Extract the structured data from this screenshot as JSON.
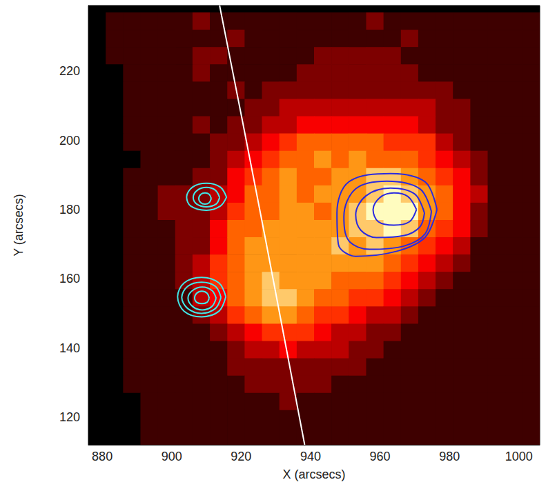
{
  "chart_data": {
    "type": "heatmap",
    "x_label": "X (arcsecs)",
    "y_label": "Y (arcsecs)",
    "xlim": [
      876,
      1006
    ],
    "ylim": [
      112,
      239
    ],
    "xticks": [
      880,
      900,
      920,
      940,
      960,
      980,
      1000
    ],
    "yticks": [
      120,
      140,
      160,
      180,
      200,
      220
    ],
    "grid": false,
    "cells": {
      "x": [
        878.5,
        883.5,
        888.5,
        893.5,
        898.5,
        903.5,
        908.5,
        913.5,
        918.5,
        923.5,
        928.5,
        933.5,
        938.5,
        943.5,
        948.5,
        953.5,
        958.5,
        963.5,
        968.5,
        973.5,
        978.5,
        983.5,
        988.5,
        993.5,
        998.5,
        1003.5
      ],
      "y": [
        234.5,
        229.5,
        224.5,
        219.5,
        214.5,
        209.5,
        204.5,
        199.5,
        194.5,
        189.5,
        184.5,
        179.5,
        174.5,
        169.5,
        164.5,
        159.5,
        154.5,
        149.5,
        144.5,
        139.5,
        134.5,
        129.5,
        124.5,
        119.5,
        114.5
      ],
      "zlim": [
        0,
        9
      ],
      "z": [
        [
          0,
          1,
          1,
          1,
          1,
          1,
          2,
          1,
          1,
          1,
          1,
          1,
          1,
          1,
          1,
          1,
          2,
          1,
          1,
          1,
          1,
          1,
          1,
          1,
          1,
          1
        ],
        [
          0,
          1,
          1,
          1,
          1,
          1,
          1,
          1,
          2,
          1,
          1,
          1,
          1,
          1,
          1,
          1,
          1,
          1,
          2,
          1,
          1,
          1,
          1,
          1,
          1,
          1
        ],
        [
          0,
          1,
          1,
          1,
          1,
          1,
          2,
          2,
          1,
          1,
          1,
          1,
          1,
          2,
          2,
          2,
          2,
          2,
          1,
          1,
          1,
          1,
          1,
          1,
          1,
          1
        ],
        [
          0,
          0,
          1,
          1,
          1,
          1,
          2,
          1,
          1,
          1,
          1,
          1,
          2,
          2,
          2,
          2,
          2,
          2,
          2,
          1,
          1,
          1,
          1,
          1,
          1,
          1
        ],
        [
          0,
          0,
          1,
          1,
          1,
          1,
          1,
          1,
          2,
          1,
          2,
          2,
          2,
          2,
          2,
          2,
          2,
          2,
          2,
          2,
          2,
          1,
          1,
          1,
          1,
          1
        ],
        [
          0,
          0,
          1,
          1,
          1,
          1,
          1,
          1,
          1,
          2,
          2,
          3,
          3,
          3,
          3,
          3,
          3,
          3,
          3,
          3,
          2,
          2,
          1,
          1,
          1,
          1
        ],
        [
          0,
          0,
          1,
          1,
          1,
          1,
          2,
          1,
          2,
          2,
          3,
          3,
          4,
          4,
          4,
          4,
          4,
          4,
          4,
          3,
          2,
          2,
          1,
          1,
          1,
          1
        ],
        [
          0,
          0,
          1,
          1,
          1,
          1,
          1,
          2,
          2,
          3,
          4,
          5,
          6,
          6,
          6,
          6,
          6,
          5,
          5,
          5,
          3,
          2,
          1,
          1,
          1,
          1
        ],
        [
          0,
          0,
          0,
          1,
          1,
          1,
          1,
          2,
          3,
          4,
          5,
          6,
          6,
          7,
          6,
          7,
          6,
          6,
          6,
          5,
          4,
          3,
          2,
          1,
          1,
          1
        ],
        [
          0,
          0,
          1,
          1,
          1,
          1,
          2,
          2,
          4,
          5,
          6,
          7,
          6,
          6,
          7,
          7,
          8,
          8,
          7,
          6,
          5,
          4,
          2,
          1,
          1,
          1
        ],
        [
          0,
          0,
          1,
          1,
          2,
          2,
          2,
          3,
          4,
          6,
          6,
          7,
          6,
          7,
          7,
          7,
          8,
          9,
          8,
          7,
          6,
          4,
          3,
          1,
          1,
          1
        ],
        [
          0,
          0,
          1,
          1,
          2,
          2,
          2,
          3,
          5,
          6,
          6,
          7,
          7,
          6,
          7,
          8,
          9,
          9,
          9,
          7,
          6,
          4,
          2,
          1,
          1,
          1
        ],
        [
          0,
          0,
          1,
          1,
          1,
          2,
          2,
          4,
          6,
          6,
          7,
          7,
          7,
          7,
          7,
          8,
          8,
          9,
          8,
          6,
          5,
          4,
          2,
          1,
          1,
          1
        ],
        [
          0,
          0,
          1,
          1,
          1,
          2,
          2,
          4,
          6,
          7,
          7,
          7,
          7,
          7,
          8,
          7,
          8,
          7,
          6,
          5,
          4,
          3,
          1,
          1,
          1,
          1
        ],
        [
          0,
          0,
          1,
          1,
          1,
          2,
          3,
          5,
          6,
          7,
          7,
          7,
          7,
          7,
          7,
          7,
          7,
          6,
          5,
          4,
          3,
          2,
          1,
          1,
          1,
          1
        ],
        [
          0,
          0,
          1,
          1,
          1,
          2,
          3,
          5,
          6,
          7,
          8,
          7,
          7,
          7,
          6,
          6,
          6,
          5,
          4,
          3,
          2,
          1,
          1,
          1,
          1,
          1
        ],
        [
          0,
          0,
          1,
          1,
          1,
          1,
          3,
          4,
          6,
          7,
          8,
          8,
          7,
          6,
          6,
          5,
          5,
          4,
          3,
          2,
          1,
          1,
          1,
          1,
          1,
          1
        ],
        [
          0,
          0,
          1,
          1,
          1,
          1,
          2,
          3,
          5,
          6,
          7,
          7,
          6,
          5,
          5,
          4,
          3,
          3,
          2,
          1,
          1,
          1,
          1,
          1,
          1,
          1
        ],
        [
          0,
          0,
          1,
          1,
          1,
          1,
          1,
          2,
          3,
          4,
          5,
          5,
          5,
          4,
          3,
          3,
          2,
          2,
          1,
          1,
          1,
          1,
          1,
          1,
          1,
          1
        ],
        [
          0,
          0,
          1,
          1,
          1,
          1,
          1,
          1,
          2,
          3,
          3,
          4,
          3,
          3,
          3,
          2,
          2,
          1,
          1,
          1,
          1,
          1,
          1,
          1,
          1,
          1
        ],
        [
          0,
          0,
          1,
          1,
          1,
          1,
          1,
          1,
          2,
          2,
          2,
          2,
          2,
          2,
          2,
          2,
          1,
          1,
          1,
          1,
          1,
          1,
          1,
          1,
          1,
          1
        ],
        [
          0,
          0,
          1,
          1,
          1,
          1,
          1,
          1,
          1,
          2,
          2,
          2,
          2,
          2,
          1,
          1,
          1,
          1,
          1,
          1,
          1,
          1,
          1,
          1,
          1,
          1
        ],
        [
          0,
          0,
          0,
          1,
          1,
          1,
          1,
          1,
          1,
          1,
          1,
          2,
          1,
          1,
          1,
          1,
          1,
          1,
          1,
          1,
          1,
          1,
          1,
          1,
          1,
          1
        ],
        [
          0,
          0,
          0,
          1,
          1,
          1,
          1,
          1,
          1,
          1,
          1,
          1,
          1,
          1,
          1,
          1,
          1,
          1,
          1,
          1,
          1,
          1,
          1,
          1,
          1,
          1
        ],
        [
          0,
          0,
          0,
          1,
          1,
          1,
          1,
          1,
          1,
          1,
          1,
          1,
          1,
          1,
          1,
          1,
          1,
          1,
          1,
          1,
          1,
          1,
          1,
          1,
          1,
          1
        ]
      ]
    },
    "series": [
      {
        "type": "line",
        "color": "#ffffff",
        "closed": false,
        "lines": [
          [
            [
              913.8,
              239
            ],
            [
              920.5,
              205
            ],
            [
              926.9,
              172
            ],
            [
              932.6,
              142
            ],
            [
              938.3,
              112
            ]
          ]
        ]
      },
      {
        "type": "contour",
        "color": "#2a2ae0",
        "closed": true,
        "lines": [
          [
            [
              976.4,
              180
            ],
            [
              973,
              188
            ],
            [
              963,
              190.4
            ],
            [
              951,
              188
            ],
            [
              947.6,
              179
            ],
            [
              948,
              170
            ],
            [
              953,
              166.5
            ],
            [
              965,
              168
            ],
            [
              973,
              172
            ]
          ],
          [
            [
              974.8,
              179.5
            ],
            [
              971.5,
              186
            ],
            [
              962,
              188.2
            ],
            [
              953,
              186
            ],
            [
              949.6,
              178
            ],
            [
              951,
              171
            ],
            [
              957,
              168.5
            ],
            [
              967,
              169.5
            ],
            [
              973,
              173
            ]
          ],
          [
            [
              972.8,
              179
            ],
            [
              970,
              184.5
            ],
            [
              963,
              186.2
            ],
            [
              956,
              184
            ],
            [
              953,
              178.5
            ],
            [
              954.5,
              174
            ],
            [
              959,
              171.9
            ],
            [
              967,
              172.5
            ],
            [
              971.5,
              175
            ]
          ],
          [
            [
              970.5,
              180
            ],
            [
              968,
              183.8
            ],
            [
              964,
              184.8
            ],
            [
              960,
              183.5
            ],
            [
              958,
              180
            ],
            [
              959.5,
              176.5
            ],
            [
              964,
              175.5
            ],
            [
              968.5,
              176.5
            ]
          ]
        ]
      },
      {
        "type": "contour",
        "color": "#40e8e8",
        "closed": true,
        "lines": [
          [
            [
              915.8,
              183.6
            ],
            [
              914,
              186.5
            ],
            [
              910,
              187.6
            ],
            [
              906,
              186.5
            ],
            [
              904.3,
              183.6
            ],
            [
              905.5,
              181
            ],
            [
              910,
              179.8
            ],
            [
              914,
              181
            ]
          ],
          [
            [
              913.8,
              183.5
            ],
            [
              912.6,
              185.6
            ],
            [
              910,
              186.4
            ],
            [
              907.4,
              185.6
            ],
            [
              906.2,
              183.5
            ],
            [
              907.2,
              181.6
            ],
            [
              910,
              180.8
            ],
            [
              912.8,
              181.6
            ]
          ],
          [
            [
              911.4,
              183.2
            ],
            [
              910.8,
              184.4
            ],
            [
              909.6,
              184.8
            ],
            [
              908.4,
              184.4
            ],
            [
              907.8,
              183.2
            ],
            [
              908.4,
              182
            ],
            [
              909.6,
              181.6
            ],
            [
              910.8,
              182
            ]
          ],
          [
            [
              915.6,
              154.8
            ],
            [
              913.6,
              158.8
            ],
            [
              908.6,
              160.4
            ],
            [
              903.6,
              158.8
            ],
            [
              901.7,
              154.8
            ],
            [
              903.6,
              150.6
            ],
            [
              908.6,
              149
            ],
            [
              913.6,
              150.6
            ]
          ],
          [
            [
              914.2,
              154.6
            ],
            [
              912.6,
              157.8
            ],
            [
              908.6,
              159
            ],
            [
              904.6,
              157.8
            ],
            [
              902.9,
              154.6
            ],
            [
              904.6,
              151.4
            ],
            [
              908.6,
              150
            ],
            [
              912.6,
              151.4
            ]
          ],
          [
            [
              912.8,
              154.4
            ],
            [
              911.6,
              156.6
            ],
            [
              908.8,
              157.6
            ],
            [
              906,
              156.6
            ],
            [
              904.7,
              154.4
            ],
            [
              906,
              152
            ],
            [
              908.8,
              151
            ],
            [
              911.6,
              152
            ]
          ],
          [
            [
              910.8,
              154.4
            ],
            [
              910.2,
              155.8
            ],
            [
              908.7,
              156.4
            ],
            [
              907.2,
              155.8
            ],
            [
              906.6,
              154.4
            ],
            [
              907.2,
              153.2
            ],
            [
              908.7,
              152.8
            ],
            [
              910.2,
              153.2
            ]
          ]
        ]
      }
    ]
  }
}
